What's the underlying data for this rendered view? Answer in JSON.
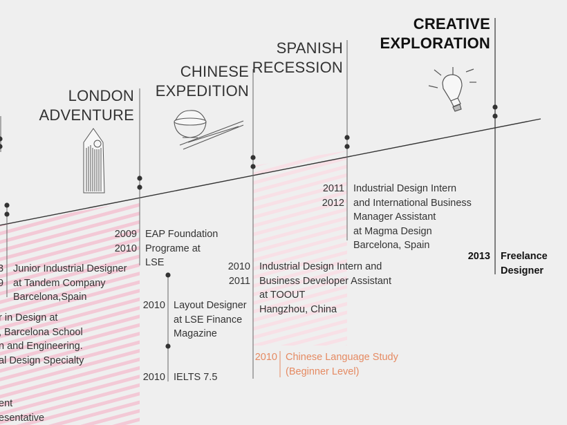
{
  "colors": {
    "background": "#efefef",
    "text": "#333333",
    "accent_orange": "#e58a62",
    "stripe_pink": "#f3c9d6",
    "line": "#333333"
  },
  "headings": {
    "london": [
      "LONDON",
      "ADVENTURE"
    ],
    "chinese": [
      "CHINESE",
      "EXPEDITION"
    ],
    "spanish": [
      "SPANISH",
      "RECESSION"
    ],
    "creative": [
      "CREATIVE",
      "EXPLORATION"
    ]
  },
  "icons": [
    "tower-icon",
    "rice-bowl-chopsticks-icon",
    "lightbulb-icon"
  ],
  "entries": {
    "barcelona": {
      "years": [
        "3",
        "9"
      ],
      "text": [
        "Junior Industrial Designer",
        "at Tandem Company",
        "Barcelona,Spain"
      ]
    },
    "partial_master": {
      "text": [
        "r in Design at",
        ", Barcelona School",
        "n and Engineering.",
        "al Design Specialty"
      ]
    },
    "partial_bottom": {
      "text": [
        "ent",
        "esentative"
      ]
    },
    "eap": {
      "years": [
        "2009",
        "2010"
      ],
      "text": [
        "EAP Foundation",
        "Programe at",
        "LSE"
      ]
    },
    "layout": {
      "years": [
        "2010"
      ],
      "text": [
        "Layout Designer",
        "at LSE Finance",
        "Magazine"
      ]
    },
    "ielts": {
      "years": [
        "2010"
      ],
      "text": [
        "IELTS 7.5"
      ]
    },
    "toout": {
      "years": [
        "2010",
        "2011"
      ],
      "text": [
        "Industrial Design Intern and",
        "Business Developer Assistant",
        "at TOOUT",
        "Hangzhou, China"
      ]
    },
    "chinese_study": {
      "years": [
        "2010"
      ],
      "text": [
        "Chinese Language Study",
        "(Beginner Level)"
      ]
    },
    "magma": {
      "years": [
        "2011",
        "2012"
      ],
      "text": [
        "Industrial Design Intern",
        "and International Business",
        "Manager Assistant",
        "at Magma Design",
        "Barcelona, Spain"
      ]
    },
    "freelance": {
      "years": [
        "2013"
      ],
      "text": [
        "Freelance",
        "Designer"
      ]
    }
  }
}
